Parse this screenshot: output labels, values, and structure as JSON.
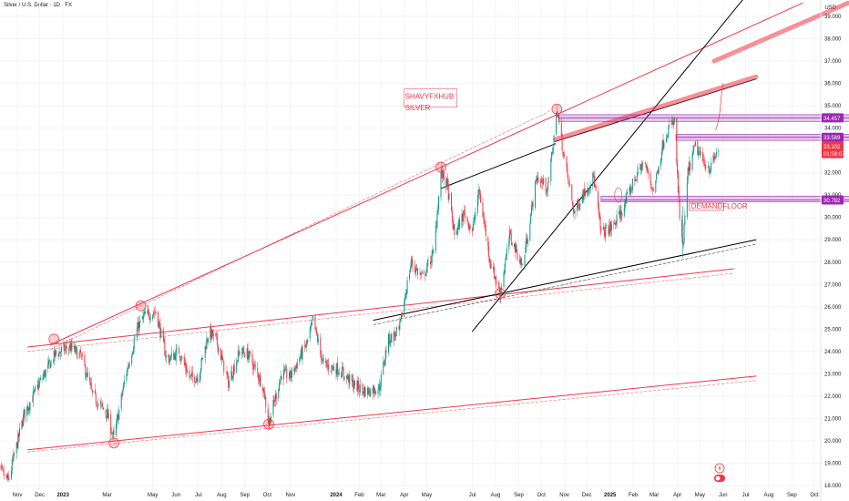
{
  "header": {
    "title": "Silver / U.S. Dollar · 1D · FX",
    "currency": "USD"
  },
  "colors": {
    "up": "#089981",
    "down": "#f23645",
    "trendRed": "#f23645",
    "trendBlack": "#000000",
    "zone": "#9c27b0",
    "price": "#f23645"
  },
  "chart_data": {
    "type": "candlestick",
    "symbol": "XAGUSD",
    "timeframe": "1D",
    "ylim": [
      17.6,
      39.6
    ],
    "y_ticks": [
      18.0,
      19.0,
      20.0,
      21.0,
      22.0,
      23.0,
      24.0,
      25.0,
      26.0,
      27.0,
      28.0,
      29.0,
      30.0,
      31.0,
      32.0,
      33.0,
      34.0,
      35.0,
      36.0,
      37.0,
      38.0,
      39.0
    ],
    "y_tick_labels": [
      "18.000",
      "19.000",
      "20.000",
      "21.000",
      "22.000",
      "23.000",
      "24.000",
      "25.000",
      "26.000",
      "27.000",
      "28.000",
      "29.000",
      "30.000",
      "31.000",
      "32.000",
      "33.000",
      "34.000",
      "35.000",
      "36.000",
      "37.000",
      "38.000",
      "39.000"
    ],
    "x_ticks": [
      {
        "label": "Nov",
        "date": "2022-11-01"
      },
      {
        "label": "Dec",
        "date": "2022-12-01"
      },
      {
        "label": "2023",
        "date": "2023-01-01"
      },
      {
        "label": "Mar",
        "date": "2023-03-01"
      },
      {
        "label": "May",
        "date": "2023-05-01"
      },
      {
        "label": "Jun",
        "date": "2023-06-01"
      },
      {
        "label": "Jul",
        "date": "2023-07-01"
      },
      {
        "label": "Aug",
        "date": "2023-08-01"
      },
      {
        "label": "Sep",
        "date": "2023-09-01"
      },
      {
        "label": "Oct",
        "date": "2023-10-01"
      },
      {
        "label": "Nov",
        "date": "2023-11-01"
      },
      {
        "label": "2024",
        "date": "2024-01-01"
      },
      {
        "label": "Feb",
        "date": "2024-02-01"
      },
      {
        "label": "Mar",
        "date": "2024-03-01"
      },
      {
        "label": "Apr",
        "date": "2024-04-01"
      },
      {
        "label": "May",
        "date": "2024-05-01"
      },
      {
        "label": "Jul",
        "date": "2024-07-01"
      },
      {
        "label": "Aug",
        "date": "2024-08-01"
      },
      {
        "label": "Sep",
        "date": "2024-09-01"
      },
      {
        "label": "Oct",
        "date": "2024-10-01"
      },
      {
        "label": "Nov",
        "date": "2024-11-01"
      },
      {
        "label": "Dec",
        "date": "2024-12-01"
      },
      {
        "label": "2025",
        "date": "2025-01-01"
      },
      {
        "label": "Feb",
        "date": "2025-02-01"
      },
      {
        "label": "Mar",
        "date": "2025-03-01"
      },
      {
        "label": "Apr",
        "date": "2025-04-01"
      },
      {
        "label": "May",
        "date": "2025-05-01"
      },
      {
        "label": "Jun",
        "date": "2025-06-01"
      },
      {
        "label": "Jul",
        "date": "2025-07-01"
      },
      {
        "label": "Aug",
        "date": "2025-08-01"
      },
      {
        "label": "Sep",
        "date": "2025-09-01"
      },
      {
        "label": "Oct",
        "date": "2025-10-01"
      }
    ],
    "bold_x_labels": [
      "2023",
      "2024",
      "2025"
    ],
    "price_path": [
      [
        "2022-10-01",
        19.0
      ],
      [
        "2022-10-20",
        18.2
      ],
      [
        "2022-11-10",
        21.2
      ],
      [
        "2022-12-01",
        22.6
      ],
      [
        "2022-12-22",
        23.9
      ],
      [
        "2023-01-10",
        24.2
      ],
      [
        "2023-01-25",
        23.8
      ],
      [
        "2023-02-10",
        22.0
      ],
      [
        "2023-03-01",
        21.2
      ],
      [
        "2023-03-10",
        20.1
      ],
      [
        "2023-03-25",
        22.8
      ],
      [
        "2023-04-10",
        25.0
      ],
      [
        "2023-04-20",
        25.6
      ],
      [
        "2023-05-05",
        25.8
      ],
      [
        "2023-05-20",
        23.6
      ],
      [
        "2023-06-05",
        24.0
      ],
      [
        "2023-06-20",
        22.8
      ],
      [
        "2023-07-01",
        22.9
      ],
      [
        "2023-07-15",
        24.9
      ],
      [
        "2023-07-25",
        24.5
      ],
      [
        "2023-08-10",
        22.6
      ],
      [
        "2023-08-25",
        24.0
      ],
      [
        "2023-09-05",
        23.9
      ],
      [
        "2023-09-25",
        22.5
      ],
      [
        "2023-10-03",
        20.8
      ],
      [
        "2023-10-20",
        23.0
      ],
      [
        "2023-11-01",
        22.9
      ],
      [
        "2023-11-25",
        24.5
      ],
      [
        "2023-12-01",
        25.4
      ],
      [
        "2023-12-15",
        23.4
      ],
      [
        "2024-01-05",
        23.2
      ],
      [
        "2024-01-25",
        22.5
      ],
      [
        "2024-02-10",
        22.2
      ],
      [
        "2024-02-28",
        22.4
      ],
      [
        "2024-03-10",
        24.5
      ],
      [
        "2024-03-25",
        24.9
      ],
      [
        "2024-04-10",
        28.0
      ],
      [
        "2024-04-25",
        27.3
      ],
      [
        "2024-05-10",
        28.4
      ],
      [
        "2024-05-20",
        32.0
      ],
      [
        "2024-05-28",
        31.5
      ],
      [
        "2024-06-07",
        29.2
      ],
      [
        "2024-06-20",
        30.2
      ],
      [
        "2024-07-01",
        29.4
      ],
      [
        "2024-07-10",
        31.2
      ],
      [
        "2024-07-25",
        28.0
      ],
      [
        "2024-08-07",
        26.6
      ],
      [
        "2024-08-20",
        29.2
      ],
      [
        "2024-09-06",
        27.8
      ],
      [
        "2024-09-25",
        31.8
      ],
      [
        "2024-10-10",
        31.3
      ],
      [
        "2024-10-22",
        34.8
      ],
      [
        "2024-11-01",
        32.6
      ],
      [
        "2024-11-14",
        30.2
      ],
      [
        "2024-11-25",
        31.0
      ],
      [
        "2024-12-10",
        31.8
      ],
      [
        "2024-12-20",
        29.3
      ],
      [
        "2025-01-05",
        29.6
      ],
      [
        "2025-01-20",
        30.5
      ],
      [
        "2025-02-01",
        31.6
      ],
      [
        "2025-02-15",
        32.5
      ],
      [
        "2025-02-28",
        31.2
      ],
      [
        "2025-03-15",
        33.7
      ],
      [
        "2025-03-28",
        34.3
      ],
      [
        "2025-04-04",
        30.0
      ],
      [
        "2025-04-08",
        28.5
      ],
      [
        "2025-04-15",
        32.0
      ],
      [
        "2025-04-25",
        33.2
      ],
      [
        "2025-05-05",
        32.5
      ],
      [
        "2025-05-15",
        32.2
      ],
      [
        "2025-05-26",
        33.1
      ]
    ],
    "last_price": 33.102,
    "last_price_label": "33.102",
    "countdown": "01:59:07",
    "trendlines": [
      {
        "color": "red",
        "from": [
          "2022-12-15",
          24.3
        ],
        "to": [
          "2025-09-15",
          39.6
        ],
        "width": 1
      },
      {
        "color": "red",
        "from": [
          "2022-12-15",
          24.1
        ],
        "to": [
          "2024-10-15",
          34.8
        ],
        "width": 1,
        "dashed": true
      },
      {
        "color": "red",
        "from": [
          "2022-11-15",
          24.2
        ],
        "to": [
          "2025-06-15",
          27.7
        ],
        "width": 1
      },
      {
        "color": "red",
        "from": [
          "2022-11-15",
          24.0
        ],
        "to": [
          "2025-06-15",
          27.5
        ],
        "width": 1,
        "dashed": true
      },
      {
        "color": "red",
        "from": [
          "2022-11-15",
          19.6
        ],
        "to": [
          "2025-07-15",
          22.9
        ],
        "width": 1
      },
      {
        "color": "red",
        "from": [
          "2022-11-15",
          19.5
        ],
        "to": [
          "2025-07-15",
          22.7
        ],
        "width": 1,
        "dashed": true
      },
      {
        "color": "black",
        "from": [
          "2024-02-20",
          25.4
        ],
        "to": [
          "2025-07-15",
          29.0
        ],
        "width": 1
      },
      {
        "color": "black",
        "from": [
          "2024-02-20",
          25.2
        ],
        "to": [
          "2025-07-15",
          28.8
        ],
        "width": 1,
        "dashed": true
      },
      {
        "color": "black",
        "from": [
          "2024-07-01",
          24.9
        ],
        "to": [
          "2025-07-01",
          39.9
        ],
        "width": 1
      },
      {
        "color": "black",
        "from": [
          "2024-05-20",
          31.3
        ],
        "to": [
          "2024-10-20",
          33.3
        ],
        "width": 1
      },
      {
        "color": "black",
        "from": [
          "2024-10-20",
          33.4
        ],
        "to": [
          "2025-07-15",
          36.2
        ],
        "width": 1
      },
      {
        "color": "red",
        "from": [
          "2025-05-20",
          37.0
        ],
        "to": [
          "2025-11-15",
          39.6
        ],
        "width": 5,
        "zone": true
      },
      {
        "color": "red",
        "from": [
          "2024-10-20",
          33.5
        ],
        "to": [
          "2025-07-15",
          36.3
        ],
        "width": 5,
        "zone": true
      }
    ],
    "levels": [
      {
        "value": 34.457,
        "label": "34.457",
        "from": "2024-10-25",
        "to": "2025-11-30",
        "zone": [
          34.3,
          34.6
        ]
      },
      {
        "value": 33.589,
        "label": "33.589",
        "from": "2025-03-30",
        "to": "2025-11-30",
        "zone": [
          33.45,
          33.72
        ]
      },
      {
        "value": 30.782,
        "label": "30.782",
        "from": "2024-12-20",
        "to": "2025-11-30",
        "zone": [
          30.7,
          30.95
        ]
      }
    ],
    "pivots": [
      [
        "2022-12-20",
        24.55
      ],
      [
        "2023-03-10",
        19.9
      ],
      [
        "2023-04-15",
        26.05
      ],
      [
        "2023-10-03",
        20.75
      ],
      [
        "2024-05-20",
        32.25
      ],
      [
        "2024-08-07",
        26.6
      ],
      [
        "2024-10-22",
        34.85
      ]
    ],
    "annotations": [
      {
        "text": "SHAVYFXHUB",
        "color": "#f23645",
        "at": [
          "2024-04-02",
          35.3
        ]
      },
      {
        "text": "SILVER",
        "color": "#f23645",
        "at": [
          "2024-04-02",
          34.8
        ]
      },
      {
        "text": "DEMANDFLOOR",
        "color": "#f23645",
        "at": [
          "2025-04-18",
          30.4
        ]
      }
    ]
  }
}
